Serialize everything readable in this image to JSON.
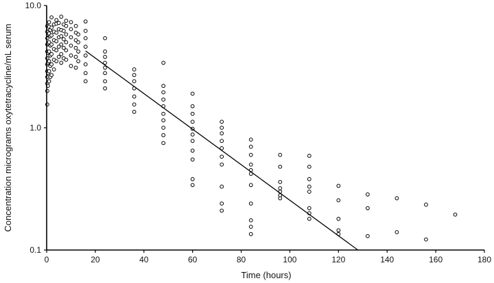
{
  "chart_data": {
    "type": "scatter",
    "title": "",
    "xlabel": "Time (hours)",
    "ylabel": "Concentration micrograms oxytetracycline/mL serum",
    "x_scale": "linear",
    "y_scale": "log",
    "xlim": [
      0,
      180
    ],
    "ylim": [
      0.1,
      10
    ],
    "x_ticks": [
      0,
      20,
      40,
      60,
      80,
      100,
      120,
      140,
      160,
      180
    ],
    "x_tick_labels": [
      "0",
      "20",
      "40",
      "60",
      "80",
      "100",
      "120",
      "140",
      "160",
      "180"
    ],
    "y_ticks": [
      0.1,
      1,
      10
    ],
    "y_tick_labels": [
      "0.1",
      "1.0",
      "10.0"
    ],
    "grid": false,
    "legend": "none",
    "colors": {
      "axis": "#000000",
      "marker": "#000000",
      "line": "#000000"
    },
    "marker": "open-circle",
    "series": [
      {
        "values": [
          [
            0.25,
            2.0
          ],
          [
            0.25,
            2.3
          ],
          [
            0.25,
            2.6
          ],
          [
            0.25,
            2.9
          ],
          [
            0.25,
            3.3
          ],
          [
            0.25,
            3.7
          ],
          [
            0.25,
            4.2
          ],
          [
            0.25,
            4.8
          ],
          [
            0.25,
            5.4
          ],
          [
            0.25,
            6.1
          ],
          [
            0.25,
            6.8
          ],
          [
            0.25,
            1.55
          ],
          [
            0.5,
            2.2
          ],
          [
            0.5,
            2.8
          ],
          [
            0.5,
            3.4
          ],
          [
            0.5,
            4.1
          ],
          [
            0.5,
            4.9
          ],
          [
            0.5,
            5.8
          ],
          [
            0.5,
            6.5
          ],
          [
            1,
            2.4
          ],
          [
            1,
            2.9
          ],
          [
            1,
            3.5
          ],
          [
            1,
            4.2
          ],
          [
            1,
            5.0
          ],
          [
            1,
            5.9
          ],
          [
            1,
            6.7
          ],
          [
            1,
            7.3
          ],
          [
            1.5,
            2.6
          ],
          [
            1.5,
            3.2
          ],
          [
            1.5,
            3.9
          ],
          [
            1.5,
            4.7
          ],
          [
            1.5,
            5.6
          ],
          [
            1.5,
            6.3
          ],
          [
            2,
            2.7
          ],
          [
            2,
            3.3
          ],
          [
            2,
            4.0
          ],
          [
            2,
            4.8
          ],
          [
            2,
            5.7
          ],
          [
            2,
            6.6
          ],
          [
            2,
            8.0
          ],
          [
            3,
            3.0
          ],
          [
            3,
            3.6
          ],
          [
            3,
            4.4
          ],
          [
            3,
            5.2
          ],
          [
            3,
            6.1
          ],
          [
            3,
            7.0
          ],
          [
            4,
            3.5
          ],
          [
            4,
            4.3
          ],
          [
            4,
            5.1
          ],
          [
            4,
            6.0
          ],
          [
            4,
            7.1
          ],
          [
            4,
            7.6
          ],
          [
            5,
            3.8
          ],
          [
            5,
            4.6
          ],
          [
            5,
            5.5
          ],
          [
            5,
            6.4
          ],
          [
            5,
            7.2
          ],
          [
            6,
            3.4
          ],
          [
            6,
            4.0
          ],
          [
            6,
            4.8
          ],
          [
            6,
            5.6
          ],
          [
            6,
            6.3
          ],
          [
            6,
            8.1
          ],
          [
            7,
            3.7
          ],
          [
            7,
            4.5
          ],
          [
            7,
            5.3
          ],
          [
            7,
            6.2
          ],
          [
            7,
            7.0
          ],
          [
            8,
            3.6
          ],
          [
            8,
            4.3
          ],
          [
            8,
            5.0
          ],
          [
            8,
            5.8
          ],
          [
            8,
            6.8
          ],
          [
            8,
            7.5
          ],
          [
            10,
            3.2
          ],
          [
            10,
            3.9
          ],
          [
            10,
            4.7
          ],
          [
            10,
            5.5
          ],
          [
            10,
            6.4
          ],
          [
            10,
            7.3
          ],
          [
            12,
            3.1
          ],
          [
            12,
            3.8
          ],
          [
            12,
            4.5
          ],
          [
            12,
            5.2
          ],
          [
            12,
            6.0
          ],
          [
            12,
            6.8
          ],
          [
            13,
            3.5
          ],
          [
            13,
            4.2
          ],
          [
            13,
            5.0
          ],
          [
            13,
            5.8
          ],
          [
            16,
            2.4
          ],
          [
            16,
            2.8
          ],
          [
            16,
            3.3
          ],
          [
            16,
            3.9
          ],
          [
            16,
            4.6
          ],
          [
            16,
            5.4
          ],
          [
            16,
            6.2
          ],
          [
            16,
            7.4
          ],
          [
            24,
            2.1
          ],
          [
            24,
            2.4
          ],
          [
            24,
            2.8
          ],
          [
            24,
            3.1
          ],
          [
            24,
            3.4
          ],
          [
            24,
            3.8
          ],
          [
            24,
            4.2
          ],
          [
            24,
            5.4
          ],
          [
            36,
            1.35
          ],
          [
            36,
            1.55
          ],
          [
            36,
            1.8
          ],
          [
            36,
            2.1
          ],
          [
            36,
            2.4
          ],
          [
            36,
            2.7
          ],
          [
            36,
            3.0
          ],
          [
            48,
            0.75
          ],
          [
            48,
            0.87
          ],
          [
            48,
            1.0
          ],
          [
            48,
            1.15
          ],
          [
            48,
            1.3
          ],
          [
            48,
            1.5
          ],
          [
            48,
            1.7
          ],
          [
            48,
            1.95
          ],
          [
            48,
            2.2
          ],
          [
            48,
            3.4
          ],
          [
            60,
            0.34
          ],
          [
            60,
            0.38
          ],
          [
            60,
            0.55
          ],
          [
            60,
            0.65
          ],
          [
            60,
            0.78
          ],
          [
            60,
            0.88
          ],
          [
            60,
            0.98
          ],
          [
            60,
            1.12
          ],
          [
            60,
            1.3
          ],
          [
            60,
            1.5
          ],
          [
            60,
            1.9
          ],
          [
            72,
            0.21
          ],
          [
            72,
            0.24
          ],
          [
            72,
            0.33
          ],
          [
            72,
            0.5
          ],
          [
            72,
            0.58
          ],
          [
            72,
            0.68
          ],
          [
            72,
            0.78
          ],
          [
            72,
            0.9
          ],
          [
            72,
            1.0
          ],
          [
            72,
            1.12
          ],
          [
            84,
            0.135
          ],
          [
            84,
            0.155
          ],
          [
            84,
            0.175
          ],
          [
            84,
            0.24
          ],
          [
            84,
            0.34
          ],
          [
            84,
            0.42
          ],
          [
            84,
            0.45
          ],
          [
            84,
            0.5
          ],
          [
            84,
            0.6
          ],
          [
            84,
            0.7
          ],
          [
            84,
            0.8
          ],
          [
            96,
            0.265
          ],
          [
            96,
            0.28
          ],
          [
            96,
            0.3
          ],
          [
            96,
            0.32
          ],
          [
            96,
            0.36
          ],
          [
            96,
            0.48
          ],
          [
            96,
            0.6
          ],
          [
            108,
            0.18
          ],
          [
            108,
            0.2
          ],
          [
            108,
            0.22
          ],
          [
            108,
            0.3
          ],
          [
            108,
            0.33
          ],
          [
            108,
            0.38
          ],
          [
            108,
            0.48
          ],
          [
            108,
            0.59
          ],
          [
            120,
            0.135
          ],
          [
            120,
            0.145
          ],
          [
            120,
            0.18
          ],
          [
            120,
            0.255
          ],
          [
            120,
            0.335
          ],
          [
            132,
            0.13
          ],
          [
            132,
            0.22
          ],
          [
            132,
            0.285
          ],
          [
            144,
            0.14
          ],
          [
            144,
            0.265
          ],
          [
            156,
            0.122
          ],
          [
            156,
            0.235
          ],
          [
            168,
            0.195
          ]
        ]
      }
    ],
    "fit_line": {
      "type": "line",
      "x": [
        16,
        128
      ],
      "y": [
        4.25,
        0.1
      ]
    }
  }
}
